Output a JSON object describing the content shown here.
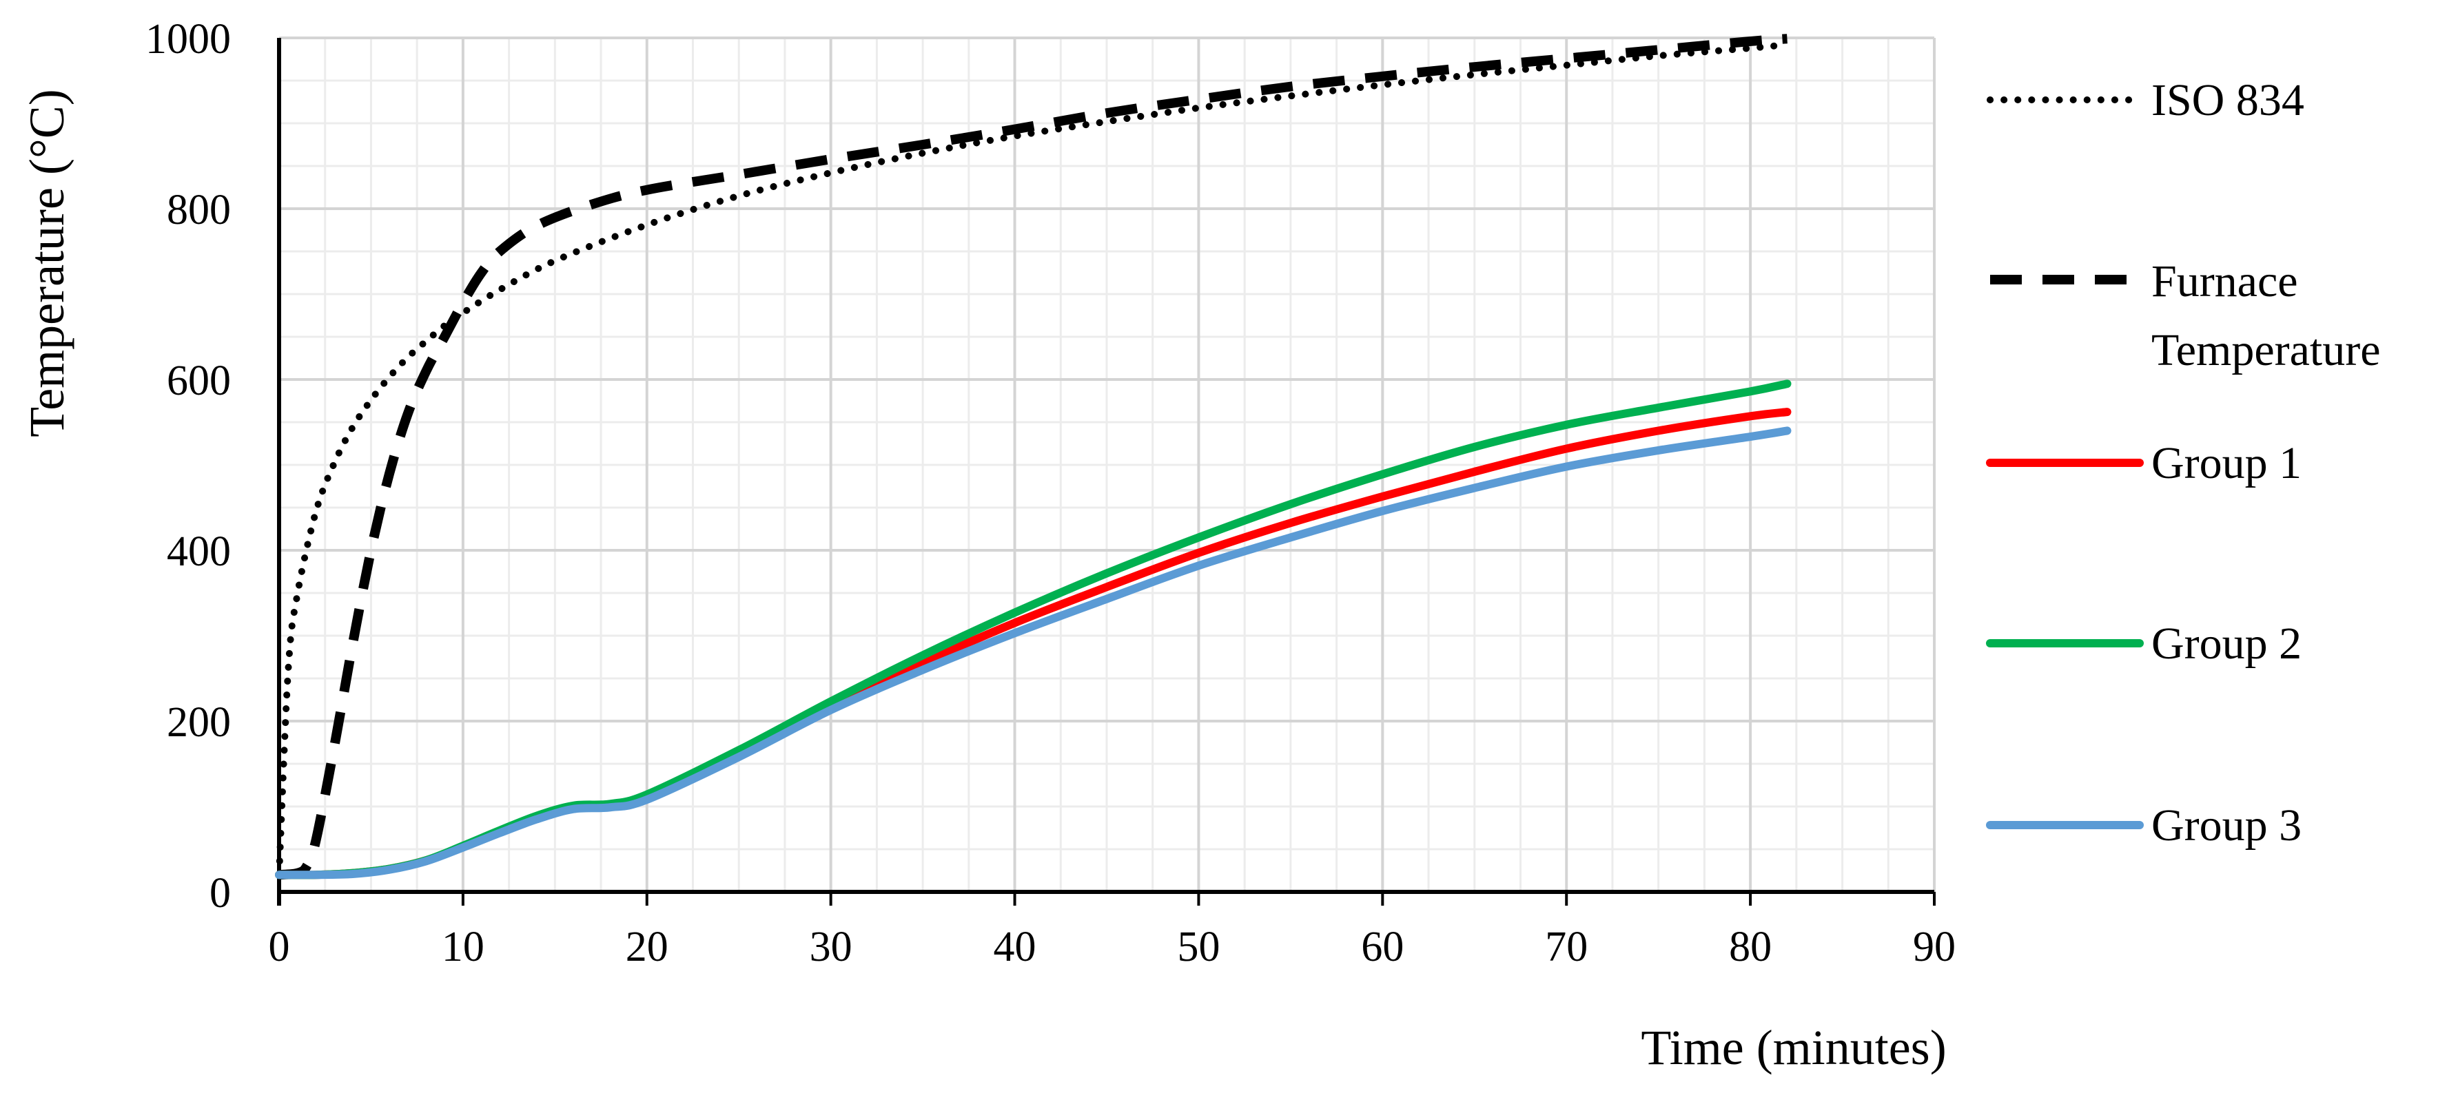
{
  "chart_data": {
    "type": "line",
    "title": "",
    "xlabel": "Time (minutes)",
    "ylabel": "Temperature (°C)",
    "xlim": [
      0,
      90
    ],
    "ylim": [
      0,
      1000
    ],
    "x_ticks": [
      "0",
      "10",
      "20",
      "30",
      "40",
      "50",
      "60",
      "70",
      "80",
      "90"
    ],
    "y_ticks": [
      "0",
      "200",
      "400",
      "600",
      "800",
      "1000"
    ],
    "grid": true,
    "legend_position": "right",
    "series": [
      {
        "name": "ISO 834",
        "style": "dotted",
        "color": "#000000",
        "x": [
          0,
          0.5,
          1,
          2,
          3,
          4,
          5,
          6,
          7,
          8,
          9,
          10,
          12,
          15,
          20,
          25,
          30,
          35,
          40,
          45,
          50,
          55,
          60,
          65,
          70,
          75,
          80,
          82
        ],
        "y": [
          20,
          261,
          349,
          445,
          502,
          544,
          576,
          603,
          626,
          645,
          663,
          678,
          705,
          739,
          781,
          815,
          842,
          865,
          885,
          902,
          918,
          932,
          945,
          957,
          968,
          979,
          988,
          992
        ]
      },
      {
        "name": "Furnace Temperature",
        "legend_lines": [
          "Furnace",
          "Temperature"
        ],
        "style": "dashed",
        "color": "#000000",
        "x": [
          0,
          1,
          1.5,
          2,
          3,
          4,
          5,
          6,
          7,
          8,
          9,
          10,
          11,
          12,
          14,
          17,
          20,
          25,
          30,
          35,
          40,
          45,
          50,
          55,
          60,
          65,
          70,
          75,
          80,
          82
        ],
        "y": [
          20,
          22,
          30,
          60,
          170,
          290,
          400,
          490,
          560,
          610,
          650,
          690,
          725,
          750,
          780,
          805,
          822,
          840,
          858,
          875,
          893,
          912,
          928,
          943,
          955,
          966,
          976,
          986,
          996,
          999
        ]
      },
      {
        "name": "Group 1",
        "style": "solid",
        "color": "#ff0000",
        "x": [
          0,
          2,
          4,
          6,
          8,
          10,
          12,
          14,
          16,
          18,
          20,
          25,
          30,
          35,
          40,
          45,
          50,
          55,
          60,
          65,
          70,
          75,
          80,
          82
        ],
        "y": [
          20,
          20,
          22,
          27,
          37,
          53,
          70,
          86,
          98,
          100,
          110,
          160,
          217,
          268,
          315,
          357,
          397,
          432,
          463,
          492,
          519,
          540,
          557,
          562
        ]
      },
      {
        "name": "Group 2",
        "style": "solid",
        "color": "#00b050",
        "x": [
          0,
          2,
          4,
          6,
          8,
          10,
          12,
          14,
          16,
          18,
          20,
          25,
          30,
          35,
          40,
          45,
          50,
          55,
          60,
          65,
          70,
          75,
          80,
          82
        ],
        "y": [
          20,
          20,
          22,
          27,
          37,
          54,
          72,
          89,
          101,
          103,
          114,
          166,
          223,
          277,
          327,
          373,
          415,
          454,
          489,
          521,
          547,
          567,
          586,
          595
        ]
      },
      {
        "name": "Group 3",
        "style": "solid",
        "color": "#5b9bd5",
        "x": [
          0,
          2,
          4,
          6,
          8,
          10,
          12,
          14,
          16,
          18,
          20,
          25,
          30,
          35,
          40,
          45,
          50,
          55,
          60,
          65,
          70,
          75,
          80,
          82
        ],
        "y": [
          20,
          20,
          21,
          26,
          36,
          52,
          69,
          85,
          97,
          99,
          108,
          158,
          213,
          260,
          303,
          343,
          382,
          415,
          446,
          473,
          498,
          517,
          533,
          540
        ]
      }
    ]
  }
}
